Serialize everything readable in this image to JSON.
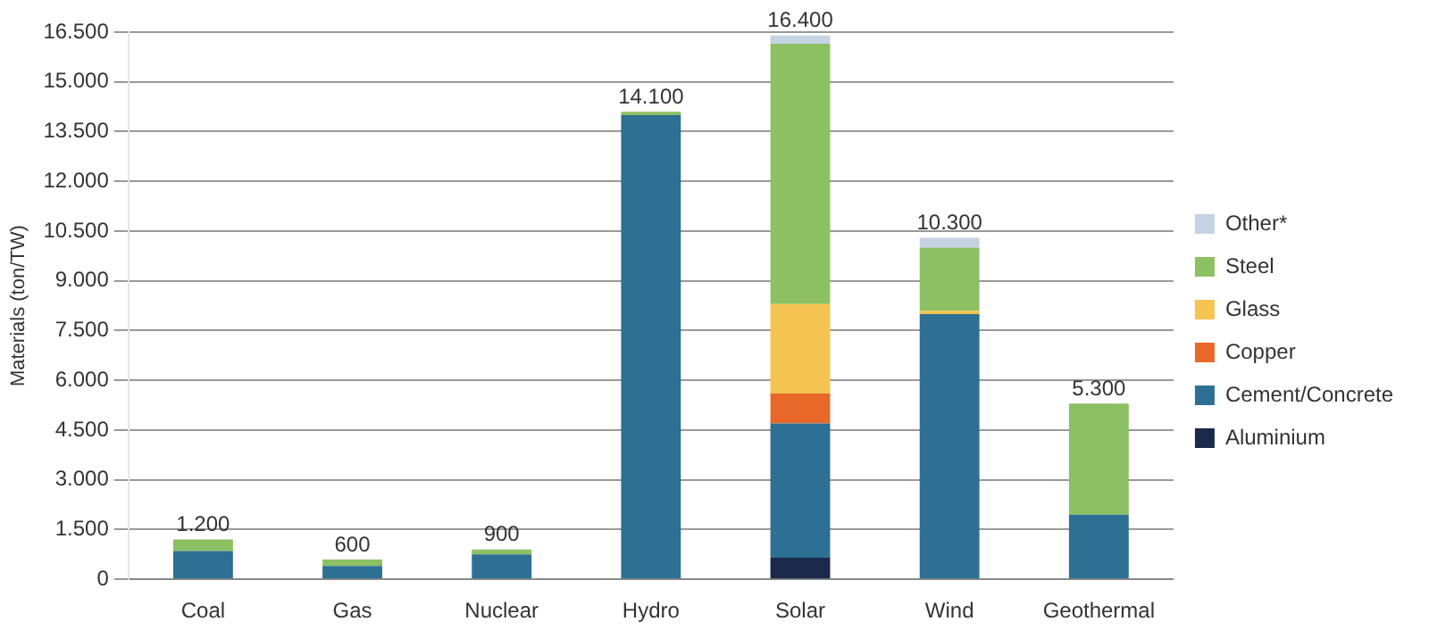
{
  "chart_data": {
    "type": "bar",
    "stacked": true,
    "ylabel": "Materials (ton/TW)",
    "categories": [
      "Coal",
      "Gas",
      "Nuclear",
      "Hydro",
      "Solar",
      "Wind",
      "Geothermal"
    ],
    "series": [
      {
        "name": "Aluminium",
        "color": "#1b2a4a",
        "values": [
          null,
          null,
          null,
          null,
          650,
          null,
          null
        ]
      },
      {
        "name": "Cement/Concrete",
        "color": "#2e6f94",
        "values": [
          850,
          400,
          750,
          14000,
          4050,
          8000,
          1950
        ]
      },
      {
        "name": "Copper",
        "color": "#e8682a",
        "values": [
          null,
          null,
          null,
          null,
          900,
          null,
          null
        ]
      },
      {
        "name": "Glass",
        "color": "#f5c451",
        "values": [
          null,
          null,
          null,
          null,
          2700,
          100,
          null
        ]
      },
      {
        "name": "Steel",
        "color": "#8cc063",
        "values": [
          350,
          200,
          150,
          100,
          7850,
          1900,
          3350
        ]
      },
      {
        "name": "Other*",
        "color": "#c5d3e3",
        "values": [
          null,
          null,
          null,
          null,
          250,
          300,
          null
        ]
      }
    ],
    "totals": [
      "1.200",
      "600",
      "900",
      "14.100",
      "16.400",
      "10.300",
      "5.300"
    ],
    "ylim": [
      0,
      16500
    ],
    "yticks": [
      {
        "value": 0,
        "label": "0"
      },
      {
        "value": 1500,
        "label": "1.500"
      },
      {
        "value": 3000,
        "label": "3.000"
      },
      {
        "value": 4500,
        "label": "4.500"
      },
      {
        "value": 6000,
        "label": "6.000"
      },
      {
        "value": 7500,
        "label": "7.500"
      },
      {
        "value": 9000,
        "label": "9.000"
      },
      {
        "value": 10500,
        "label": "10.500"
      },
      {
        "value": 12000,
        "label": "12.000"
      },
      {
        "value": 13500,
        "label": "13.500"
      },
      {
        "value": 15000,
        "label": "15.000"
      },
      {
        "value": 16500,
        "label": "16.500"
      }
    ],
    "grid": "y",
    "legend": "right"
  }
}
